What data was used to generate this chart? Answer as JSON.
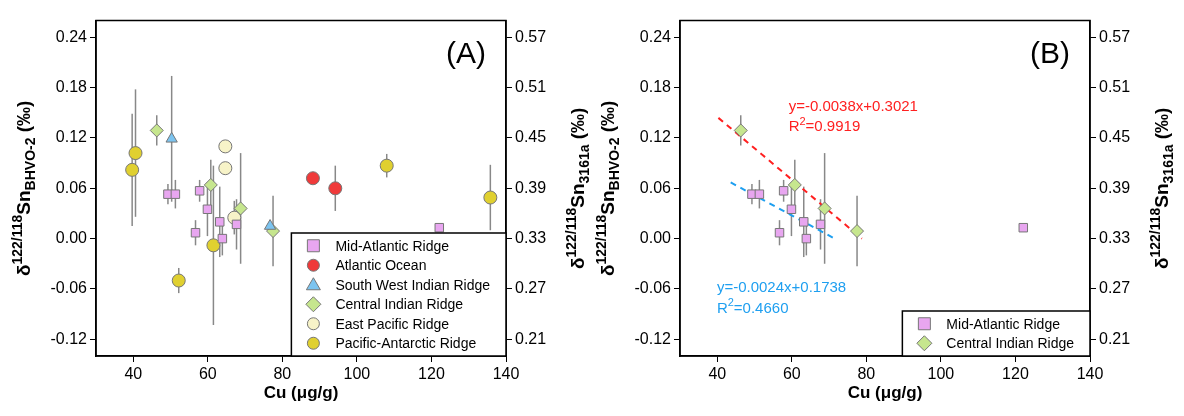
{
  "chart_data": [
    {
      "type": "scatter",
      "title": "(A)",
      "xlabel": "Cu (μg/g)",
      "ylabel": "δ$^{122/118}$Sn$_{BHVO-2}$ (‰)",
      "y2label": "δ$^{122/118}$Sn$_{3161a}$ (‰)",
      "xlim": [
        30,
        140
      ],
      "xticks": [
        40,
        60,
        80,
        100,
        120,
        140
      ],
      "ylim": [
        -0.14,
        0.26
      ],
      "yticks": [
        {
          "value": -0.12,
          "label": "-0.12"
        },
        {
          "value": -0.06,
          "label": "-0.06"
        },
        {
          "value": 0,
          "label": "0.00"
        },
        0.06,
        0.12,
        0.18,
        0.24
      ],
      "y2lim": [
        0.19,
        0.59
      ],
      "y2ticks": [
        0.21,
        0.27,
        0.33,
        0.39,
        0.45,
        0.51,
        0.57
      ],
      "grid": false,
      "legend": "bottom right",
      "series": [
        {
          "name": "Mid-Atlantic Ridge",
          "color": "#e8a6f0",
          "marker": "square",
          "x": [
            49.3,
            51.3,
            57.8,
            59.9,
            56.7,
            63.2,
            63.9,
            67.7,
            122.1
          ],
          "values": [
            0.053,
            0.053,
            0.057,
            0.035,
            0.007,
            0.02,
            0,
            0.017,
            0.013
          ],
          "errors": [
            0.012,
            0.017,
            0.013,
            0.032,
            0.015,
            0.042,
            0.02,
            0.03,
            null
          ]
        },
        {
          "name": "Atlantic Ocean",
          "color": "#f03a3a",
          "marker": "circle",
          "x": [
            88.2,
            94.2
          ],
          "values": [
            0.072,
            0.06
          ],
          "errors": [
            0.004,
            0.027
          ]
        },
        {
          "name": "South West Indian Ridge",
          "color": "#7cc4f0",
          "marker": "triangle",
          "x": [
            50.3,
            76.7
          ],
          "values": [
            0.119,
            0.015
          ],
          "errors": [
            0.075,
            0.006
          ]
        },
        {
          "name": "Central Indian Ridge",
          "color": "#c6e68e",
          "marker": "diamond",
          "x": [
            46.3,
            60.8,
            68.8,
            77.5
          ],
          "values": [
            0.129,
            0.064,
            0.036,
            0.009
          ],
          "errors": [
            0.018,
            0.03,
            0.066,
            0.042
          ]
        },
        {
          "name": "East Pacific Ridge",
          "color": "#f7f3c8",
          "x": [
            64.7,
            64.7,
            67.1
          ],
          "values": [
            0.11,
            0.084,
            0.025
          ],
          "errors": [
            null,
            null,
            0.02
          ]
        },
        {
          "name": "Pacific-Antarctic Ridge",
          "color": "#e0d030",
          "x": [
            39.7,
            40.6,
            52.2,
            61.5,
            108,
            135.8
          ],
          "values": [
            0.082,
            0.102,
            -0.05,
            -0.008,
            0.087,
            0.049
          ],
          "errors": [
            0.067,
            0.076,
            0.015,
            0.095,
            0.014,
            0.039
          ]
        }
      ]
    },
    {
      "type": "scatter",
      "title": "(B)",
      "xlabel": "Cu (μg/g)",
      "ylabel": "δ$^{122/118}$Sn$_{BHVO-2}$ (‰)",
      "y2label": "δ$^{122/118}$Sn$_{3161a}$ (‰)",
      "xlim": [
        30,
        140
      ],
      "xticks": [
        40,
        60,
        80,
        100,
        120,
        140
      ],
      "ylim": [
        -0.14,
        0.26
      ],
      "yticks": [
        {
          "value": -0.12,
          "label": "-0.12"
        },
        {
          "value": -0.06,
          "label": "-0.06"
        },
        {
          "value": 0,
          "label": "0.00"
        },
        0.06,
        0.12,
        0.18,
        0.24
      ],
      "y2lim": [
        0.19,
        0.59
      ],
      "y2ticks": [
        0.21,
        0.27,
        0.33,
        0.39,
        0.45,
        0.51,
        0.57
      ],
      "grid": false,
      "legend": "bottom right",
      "annotations": [
        "y=-0.0038x+0.3021\nR$^{2}$=0.9919",
        "y=-0.0024x+0.1738\nR$^{2}$=0.4660"
      ],
      "series": [
        {
          "name": "Mid-Atlantic Ridge",
          "color": "#e8a6f0",
          "marker": "square",
          "x": [
            49.3,
            51.3,
            57.8,
            59.9,
            56.7,
            63.2,
            63.9,
            67.7,
            122.1
          ],
          "values": [
            0.053,
            0.053,
            0.057,
            0.035,
            0.007,
            0.02,
            0,
            0.017,
            0.013
          ],
          "errors": [
            0.012,
            0.017,
            0.013,
            0.032,
            0.015,
            0.042,
            0.02,
            0.03,
            null
          ]
        },
        {
          "name": "Central Indian Ridge",
          "color": "#c6e68e",
          "marker": "diamond",
          "x": [
            46.3,
            60.8,
            68.8,
            77.5
          ],
          "values": [
            0.129,
            0.064,
            0.036,
            0.009
          ],
          "errors": [
            0.018,
            0.03,
            0.066,
            0.042
          ]
        },
        {
          "type": "line",
          "color": "#ff2020",
          "marker": "none",
          "line_style": "dashed",
          "x": [
            40.3,
            78.8
          ],
          "values": [
            0.144,
            0
          ]
        },
        {
          "type": "line",
          "color": "#1e9ff0",
          "marker": "none",
          "line_style": "dashed",
          "x": [
            43.6,
            71.1
          ],
          "values": [
            0.067,
            0.001
          ]
        }
      ]
    }
  ]
}
